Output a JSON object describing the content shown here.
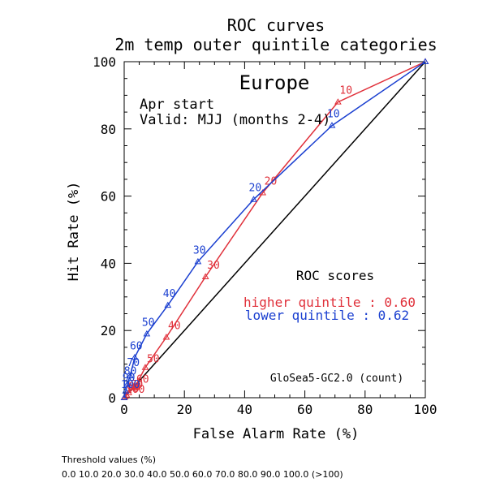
{
  "chart_data": {
    "type": "line",
    "title": "ROC curves",
    "subtitle": "2m temp outer quintile categories",
    "region": "Europe",
    "start_label": "Apr start",
    "valid_label": "Valid: MJJ (months 2-4)",
    "xlabel": "False Alarm Rate (%)",
    "ylabel": "Hit Rate (%)",
    "xlim": [
      0,
      100
    ],
    "ylim": [
      0,
      100
    ],
    "x_ticks": [
      "0",
      "20",
      "40",
      "60",
      "80",
      "100"
    ],
    "y_ticks": [
      "0",
      "20",
      "40",
      "60",
      "80",
      "100"
    ],
    "grid": false,
    "legend_position": "right-middle",
    "scores_heading": "ROC scores",
    "model_label": "GloSea5-GC2.0 (count)",
    "diagonal": {
      "x": [
        0,
        100
      ],
      "y": [
        0,
        100
      ],
      "color": "#000000"
    },
    "series": [
      {
        "label": "higher quintile : 0.60",
        "color": "#e0303a",
        "points": [
          {
            "x": 100,
            "y": 100,
            "label": ""
          },
          {
            "x": 71,
            "y": 88,
            "label": "10"
          },
          {
            "x": 46,
            "y": 61,
            "label": "20"
          },
          {
            "x": 27,
            "y": 36,
            "label": "30"
          },
          {
            "x": 14,
            "y": 18,
            "label": "40"
          },
          {
            "x": 7,
            "y": 9,
            "label": "50"
          },
          {
            "x": 3.5,
            "y": 3,
            "label": "60"
          },
          {
            "x": 1.5,
            "y": 1.5,
            "label": "70"
          },
          {
            "x": 0.8,
            "y": 0.8,
            "label": "80"
          },
          {
            "x": 0.3,
            "y": 0.3,
            "label": "90"
          },
          {
            "x": 0,
            "y": 0,
            "label": "100"
          }
        ]
      },
      {
        "label": "lower quintile : 0.62",
        "color": "#1a3fd0",
        "points": [
          {
            "x": 100,
            "y": 100,
            "label": ""
          },
          {
            "x": 69,
            "y": 81,
            "label": "10"
          },
          {
            "x": 43,
            "y": 59,
            "label": "20"
          },
          {
            "x": 24.5,
            "y": 40.5,
            "label": "30"
          },
          {
            "x": 14.5,
            "y": 27.5,
            "label": "40"
          },
          {
            "x": 7.5,
            "y": 19,
            "label": "50"
          },
          {
            "x": 3.5,
            "y": 12,
            "label": "60"
          },
          {
            "x": 2,
            "y": 6.5,
            "label": "70"
          },
          {
            "x": 1,
            "y": 4,
            "label": "80"
          },
          {
            "x": 0.5,
            "y": 2,
            "label": "90"
          },
          {
            "x": 0,
            "y": 0,
            "label": "100"
          }
        ]
      }
    ]
  },
  "footer": {
    "threshold_title": "Threshold values (%)",
    "threshold_values": "0.0 10.0 20.0 30.0 40.0 50.0 60.0 70.0 80.0 90.0 100.0 (>100)"
  }
}
